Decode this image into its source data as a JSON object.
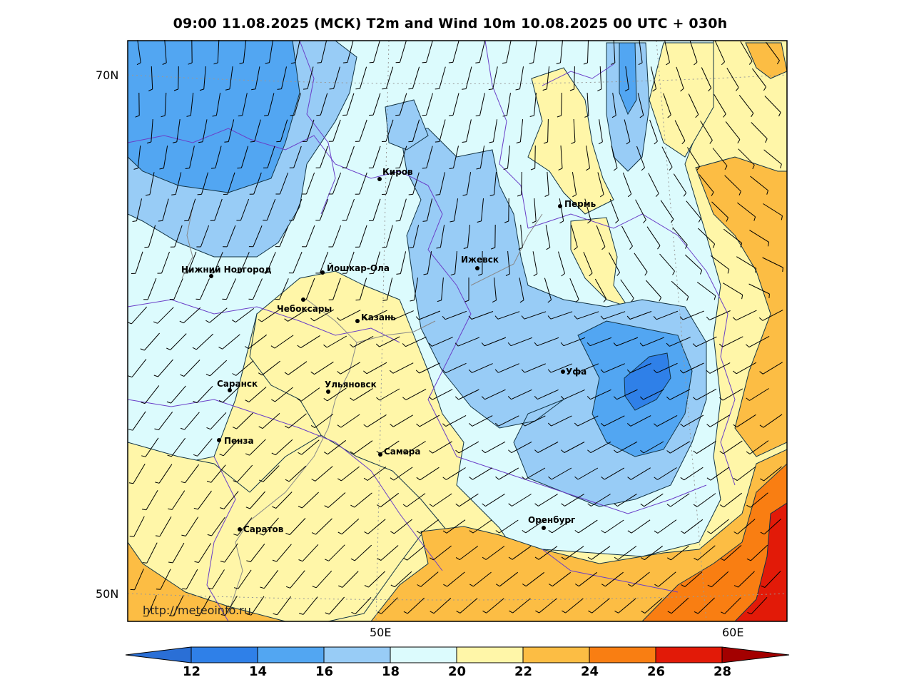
{
  "title": "09:00 11.08.2025 (МСК) T2m and Wind 10m 10.08.2025 00 UTC + 030h",
  "axes": {
    "lat_labels": [
      "70N",
      "50N"
    ],
    "lon_labels": [
      "50E",
      "60E"
    ]
  },
  "colorbar": {
    "ticks": [
      "12",
      "14",
      "16",
      "18",
      "20",
      "22",
      "24",
      "26",
      "28"
    ],
    "colors": [
      "#2a6fd6",
      "#2f80e8",
      "#52a6f2",
      "#98ccf6",
      "#dcfbfd",
      "#fff6a8",
      "#fcbd44",
      "#f97e12",
      "#e21a08",
      "#a30000"
    ],
    "levels_c": [
      12,
      14,
      16,
      18,
      20,
      22,
      24,
      26,
      28
    ]
  },
  "cities": [
    {
      "name": "Киров",
      "id": "kirov"
    },
    {
      "name": "Пермь",
      "id": "perm"
    },
    {
      "name": "Нижний Новгород",
      "id": "nizhny"
    },
    {
      "name": "Йошкар-Ола",
      "id": "yoshkar"
    },
    {
      "name": "Ижевск",
      "id": "izhevsk"
    },
    {
      "name": "Чебоксары",
      "id": "cheboksary"
    },
    {
      "name": "Казань",
      "id": "kazan"
    },
    {
      "name": "Уфа",
      "id": "ufa"
    },
    {
      "name": "Саранск",
      "id": "saransk"
    },
    {
      "name": "Ульяновск",
      "id": "ulyanovsk"
    },
    {
      "name": "Пенза",
      "id": "penza"
    },
    {
      "name": "Самара",
      "id": "samara"
    },
    {
      "name": "Оренбург",
      "id": "orenburg"
    },
    {
      "name": "Саратов",
      "id": "saratov"
    }
  ],
  "watermark": "http://meteoinfo.ru"
}
